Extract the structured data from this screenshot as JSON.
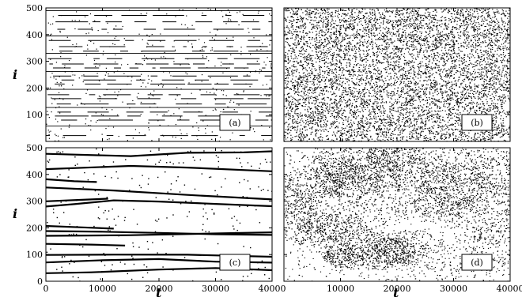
{
  "figure": {
    "y_axis_label": "i",
    "x_axis_label": "t"
  },
  "chart_data": [
    {
      "type": "scatter",
      "panel": "(a)",
      "pattern": "sparse-horizontal-streaks",
      "xlim": [
        0,
        40000
      ],
      "ylim": [
        0,
        500
      ],
      "yticks": [
        0,
        100,
        200,
        300,
        400,
        500
      ],
      "y_tick_labels": [
        "100",
        "200",
        "300",
        "400",
        "500"
      ],
      "x_tick_labels": [],
      "ylabel": "i",
      "xlabel": "",
      "grid": false
    },
    {
      "type": "scatter",
      "panel": "(b)",
      "pattern": "dense-uniform-noise",
      "xlim": [
        0,
        40000
      ],
      "ylim": [
        0,
        500
      ],
      "y_tick_labels": [],
      "x_tick_labels": [],
      "ylabel": "",
      "xlabel": "",
      "grid": false
    },
    {
      "type": "scatter",
      "panel": "(c)",
      "pattern": "thick-slow-drifting-lines",
      "xlim": [
        0,
        40000
      ],
      "ylim": [
        0,
        500
      ],
      "y_tick_labels": [
        "0",
        "100",
        "200",
        "300",
        "400",
        "500"
      ],
      "x_tick_labels": [
        "0",
        "10000",
        "20000",
        "30000",
        "40000"
      ],
      "ylabel": "i",
      "xlabel": "t",
      "grid": false
    },
    {
      "type": "scatter",
      "panel": "(d)",
      "pattern": "clustered-noise",
      "xlim": [
        0,
        40000
      ],
      "ylim": [
        0,
        500
      ],
      "y_tick_labels": [],
      "x_tick_labels": [
        "10000",
        "20000",
        "30000",
        "40000"
      ],
      "ylabel": "",
      "xlabel": "t",
      "grid": false
    }
  ]
}
